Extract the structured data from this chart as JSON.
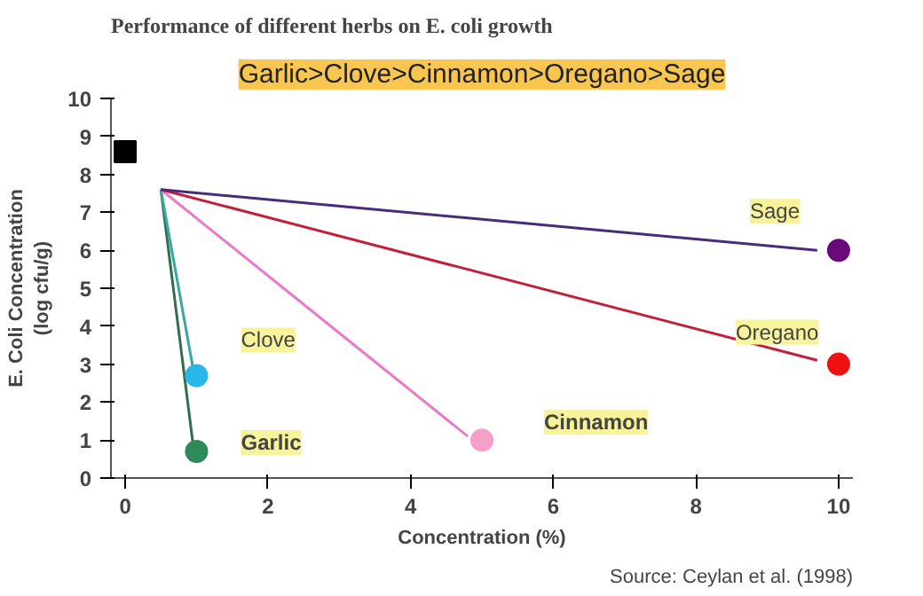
{
  "chart_data": {
    "type": "scatter",
    "title": "Performance of different herbs on E. coli growth",
    "subtitle": "Garlic>Clove>Cinnamon>Oregano>Sage",
    "xlabel": "Concentration (%)",
    "ylabel": "E. Coli Concentration\n(log cfu/g)",
    "xlim": [
      -0.2,
      10.2
    ],
    "ylim": [
      0,
      10
    ],
    "xticks": [
      0,
      2,
      4,
      6,
      8,
      10
    ],
    "yticks": [
      0,
      1,
      2,
      3,
      4,
      5,
      6,
      7,
      8,
      9,
      10
    ],
    "grid": false,
    "legend": false,
    "series": [
      {
        "marker": "square",
        "color": "#000000",
        "x": [
          0
        ],
        "values": [
          8.6
        ]
      },
      {
        "type": "line",
        "marker": "none",
        "line_style": "solid",
        "color": "#2f6f4f",
        "x": [
          0.5,
          0.95
        ],
        "values": [
          7.6,
          0.9
        ]
      },
      {
        "type": "line",
        "marker": "none",
        "line_style": "solid",
        "color": "#3aa8a0",
        "x": [
          0.5,
          0.95
        ],
        "values": [
          7.6,
          2.9
        ]
      },
      {
        "type": "line",
        "marker": "none",
        "line_style": "solid",
        "color": "#e87cc8",
        "x": [
          0.5,
          4.8
        ],
        "values": [
          7.6,
          1.1
        ]
      },
      {
        "type": "line",
        "marker": "none",
        "line_style": "solid",
        "color": "#c0203a",
        "x": [
          0.5,
          9.7
        ],
        "values": [
          7.6,
          3.1
        ]
      },
      {
        "type": "line",
        "marker": "none",
        "line_style": "solid",
        "color": "#4a2a7a",
        "x": [
          0.5,
          9.7
        ],
        "values": [
          7.6,
          6.0
        ]
      },
      {
        "marker": "circle",
        "name": "Garlic",
        "color": "#2e8b57",
        "x": [
          1
        ],
        "values": [
          0.7
        ]
      },
      {
        "marker": "circle",
        "name": "Clove",
        "color": "#29b6e8",
        "x": [
          1
        ],
        "values": [
          2.7
        ]
      },
      {
        "marker": "circle",
        "name": "Cinnamon",
        "color": "#f4a0c8",
        "x": [
          5
        ],
        "values": [
          1.0
        ]
      },
      {
        "marker": "circle",
        "name": "Oregano",
        "color": "#ee1111",
        "x": [
          10
        ],
        "values": [
          3.0
        ]
      },
      {
        "marker": "circle",
        "name": "Sage",
        "color": "#6a0a7a",
        "x": [
          10
        ],
        "values": [
          6.0
        ]
      }
    ],
    "annotations": [
      "Source: Ceylan et al. (1998)"
    ]
  }
}
